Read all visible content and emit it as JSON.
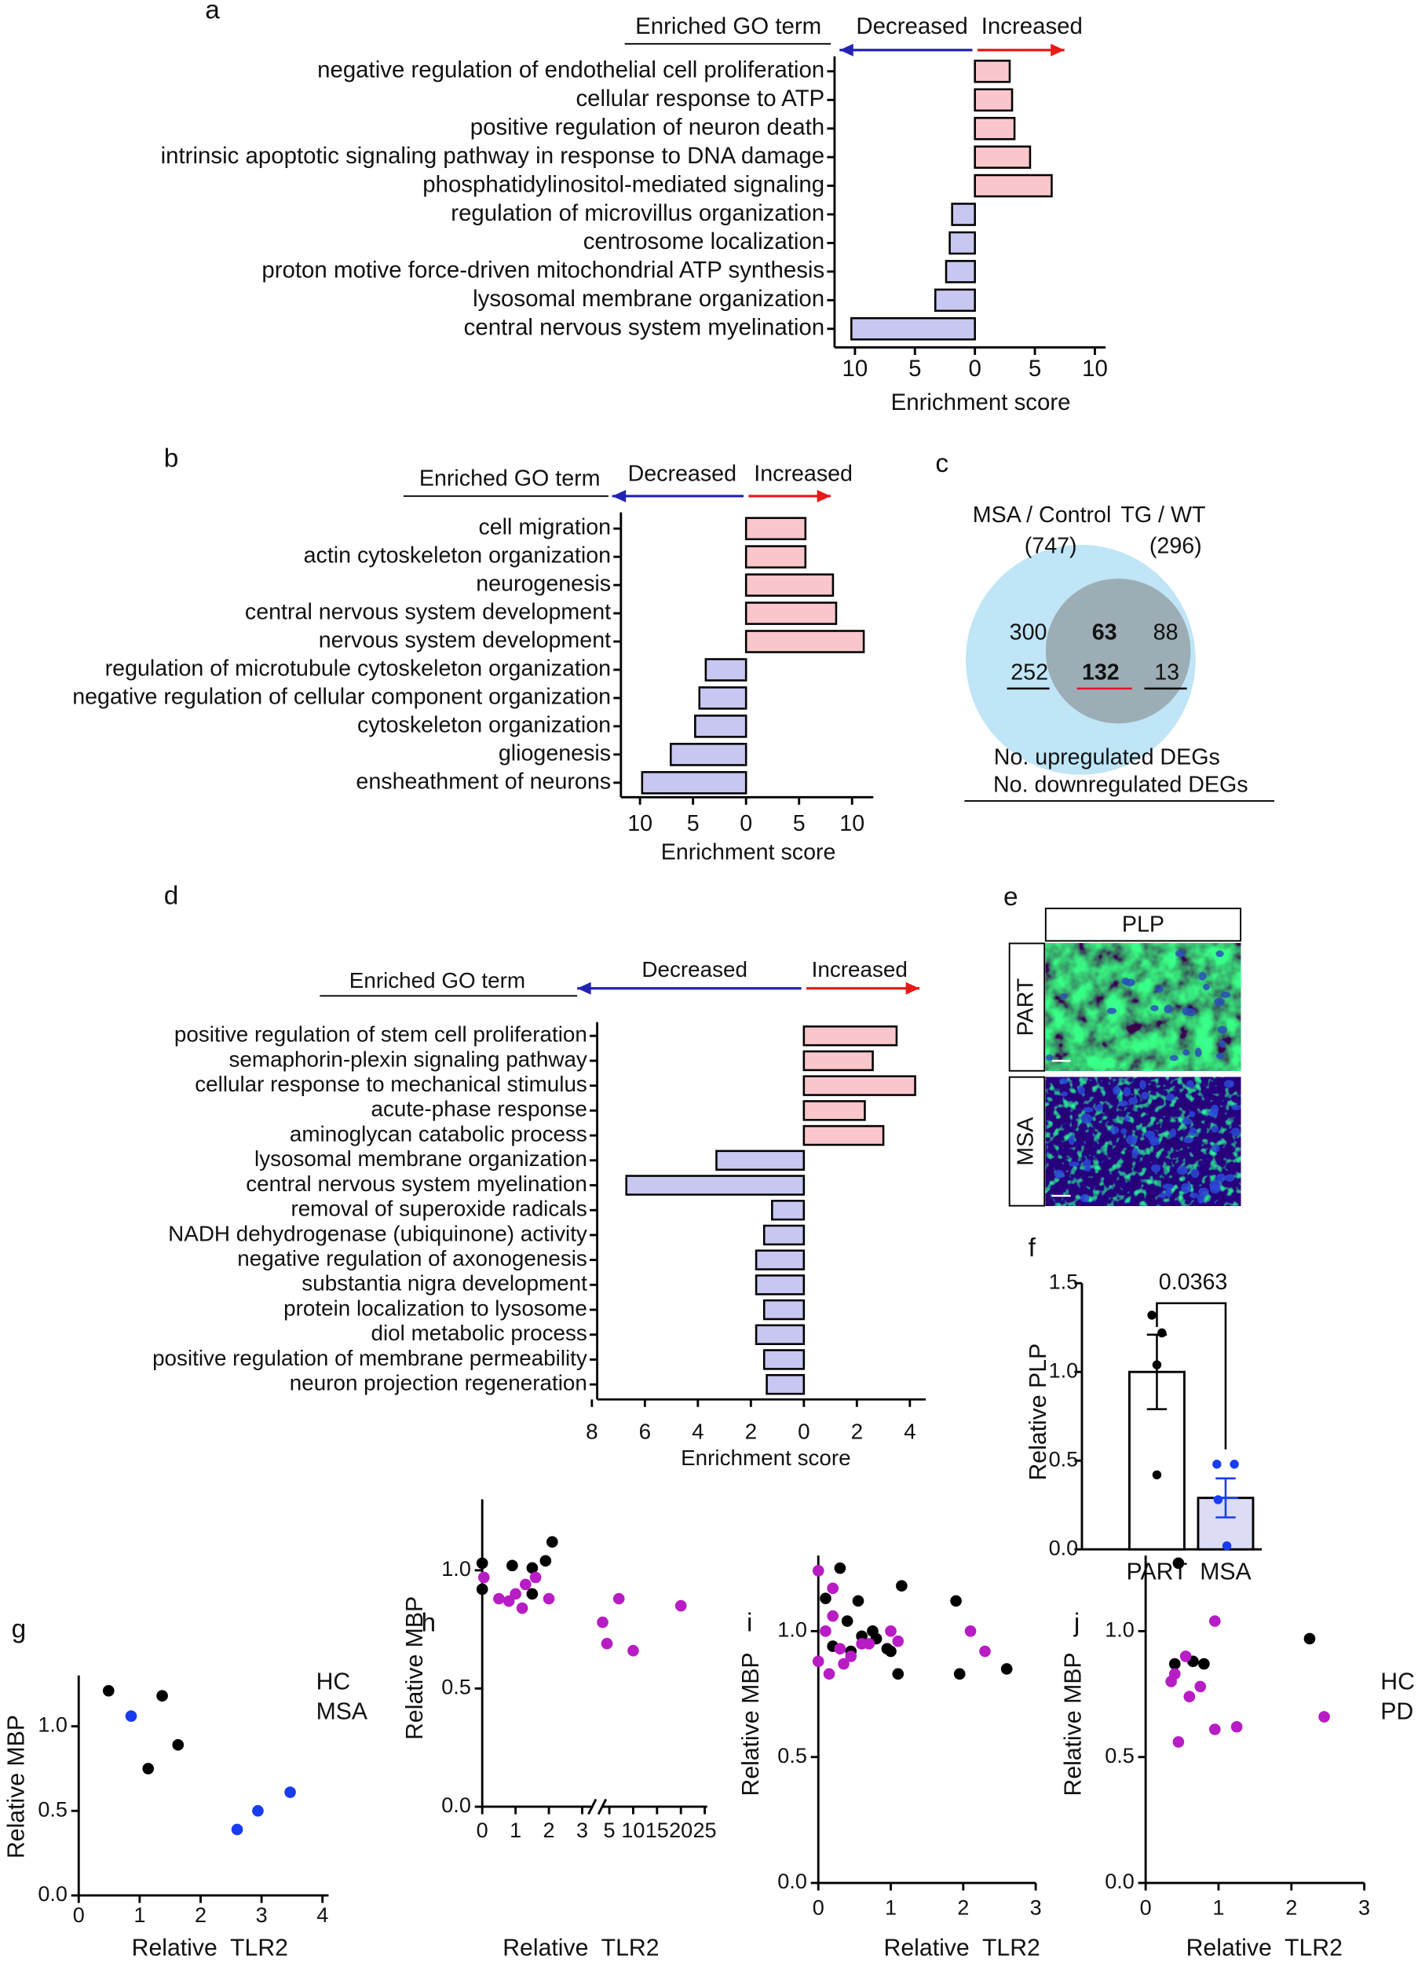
{
  "chart_data": [
    {
      "label": "a",
      "type": "bar",
      "header": "Enriched GO term",
      "left_label": "Decreased",
      "right_label": "Increased",
      "xlabel": "Enrichment score",
      "categories": [
        "negative regulation of endothelial cell proliferation",
        "cellular response to ATP",
        "positive regulation of neuron death",
        "intrinsic apoptotic signaling pathway in response to DNA damage",
        "phosphatidylinositol-mediated signaling",
        "regulation of microvillus organization",
        "centrosome localization",
        "proton motive force-driven mitochondrial ATP synthesis",
        "lysosomal membrane organization",
        "central nervous system myelination"
      ],
      "values": [
        2.9,
        3.1,
        3.3,
        4.6,
        6.4,
        -1.9,
        -2.1,
        -2.4,
        -3.3,
        -10.3
      ],
      "category_colors": [
        "#1a1a1a",
        "#1a1a1a",
        "#1a1a1a",
        "#1a1a1a",
        "#e8112d",
        "#1a1a1a",
        "#1a1a1a",
        "#1a1a1a",
        "#1a1a1a",
        "#1f1fe6"
      ],
      "colors": {
        "increase": "#f9c6cb",
        "decrease": "#c7c7f1",
        "decreased_label": "#2323b4",
        "increased_label": "#e81919"
      },
      "xlim": [
        -11.7,
        10.9
      ],
      "xticks": [
        {
          "value": -10,
          "label": "10"
        },
        {
          "value": -5,
          "label": "5"
        },
        0,
        5,
        10
      ]
    },
    {
      "label": "b",
      "type": "bar",
      "header": "Enriched GO term",
      "left_label": "Decreased",
      "right_label": "Increased",
      "xlabel": "Enrichment score",
      "categories": [
        "cell migration",
        "actin cytoskeleton organization",
        "neurogenesis",
        "central nervous system development",
        "nervous system development",
        "regulation of microtubule cytoskeleton organization",
        "negative regulation of cellular component organization",
        "cytoskeleton organization",
        "gliogenesis",
        "ensheathment of neurons"
      ],
      "values": [
        5.6,
        5.6,
        8.2,
        8.5,
        11.1,
        -3.8,
        -4.4,
        -4.8,
        -7.1,
        -9.8
      ],
      "category_colors": [
        "#1a1a1a",
        "#1a1a1a",
        "#e8112d",
        "#1a1a1a",
        "#1a1a1a",
        "#1a1a1a",
        "#1a1a1a",
        "#1a1a1a",
        "#1f1fe6",
        "#1f1fe6"
      ],
      "colors": {
        "increase": "#f9c6cb",
        "decrease": "#c7c7f1",
        "decreased_label": "#2323b4",
        "increased_label": "#e81919"
      },
      "xlim": [
        -11.8,
        12
      ],
      "xticks": [
        {
          "value": -10,
          "label": "10"
        },
        {
          "value": -5,
          "label": "5"
        },
        0,
        5,
        10
      ]
    },
    {
      "label": "c",
      "type": "venn",
      "sets": [
        {
          "name": "MSA / Control",
          "total": "(747)",
          "color": "#bfe5f6"
        },
        {
          "name": "TG / WT",
          "total": "(296)",
          "color": "#7f7f7f"
        }
      ],
      "up": [
        300,
        63,
        88
      ],
      "down": [
        252,
        132,
        13
      ],
      "overlap_color": "#e8112d",
      "up_label": "No. upregulated DEGs",
      "down_label": "No. downregulated DEGs"
    },
    {
      "label": "d",
      "type": "bar",
      "header": "Enriched GO term",
      "left_label": "Decreased",
      "right_label": "Increased",
      "xlabel": "Enrichment score",
      "categories": [
        "positive regulation of stem cell proliferation",
        "semaphorin-plexin signaling pathway",
        "cellular response to mechanical stimulus",
        "acute-phase response",
        "aminoglycan catabolic process",
        "lysosomal membrane organization",
        "central nervous system myelination",
        "removal of superoxide radicals",
        "NADH dehydrogenase (ubiquinone) activity",
        "negative regulation of axonogenesis",
        "substantia nigra development",
        "protein localization to lysosome",
        "diol metabolic process",
        "positive regulation of membrane permeability",
        "neuron projection regeneration"
      ],
      "values": [
        3.5,
        2.6,
        4.2,
        2.3,
        3.0,
        -3.3,
        -6.7,
        -1.2,
        -1.5,
        -1.8,
        -1.8,
        -1.5,
        -1.8,
        -1.5,
        -1.4
      ],
      "category_colors": [
        "#1a1a1a",
        "#1a1a1a",
        "#1a1a1a",
        "#1a1a1a",
        "#1a1a1a",
        "#1a1a1a",
        "#f03c1e",
        "#1a1a1a",
        "#1a1a1a",
        "#1a1a1a",
        "#1a1a1a",
        "#1a1a1a",
        "#1a1a1a",
        "#1a1a1a",
        "#1a1a1a"
      ],
      "colors": {
        "increase": "#f9c6cb",
        "decrease": "#c7c7f1",
        "decreased_label": "#2323b4",
        "increased_label": "#e81919"
      },
      "xlim": [
        -7.8,
        4.6
      ],
      "xticks": [
        {
          "value": -8,
          "label": "8"
        },
        {
          "value": -6,
          "label": "6"
        },
        {
          "value": -4,
          "label": "4"
        },
        {
          "value": -2,
          "label": "2"
        },
        0,
        2,
        4
      ]
    },
    {
      "label": "e",
      "type": "image",
      "title": "PLP",
      "title_color": "#2ee86a",
      "rows": [
        "PART",
        "MSA"
      ]
    },
    {
      "label": "f",
      "type": "bar_scatter",
      "ylabel": "Relative PLP",
      "annotation": "0.0363",
      "categories": [
        "PART",
        "MSA"
      ],
      "values": [
        1.0,
        0.29
      ],
      "errors": [
        0.21,
        0.11
      ],
      "points": [
        [
          1.32,
          1.22,
          1.04,
          0.42
        ],
        [
          0.48,
          0.48,
          0.28,
          0.02
        ]
      ],
      "bar_colors": [
        "#ffffff",
        "#dcdcf4"
      ],
      "point_colors": [
        "#000000",
        "#1a3cf0"
      ],
      "ylim": [
        0,
        1.5
      ],
      "yticks": [
        {
          "value": 0,
          "label": "0.0"
        },
        0.5,
        {
          "value": 1,
          "label": "1.0"
        },
        1.5
      ]
    },
    {
      "label": "g",
      "type": "scatter",
      "xlabel": "Relative  TLR2",
      "ylabel": "Relative MBP",
      "legend": "right",
      "series": [
        {
          "name": "HC",
          "color": "#000000",
          "x": [
            0.49,
            1.37,
            1.63,
            1.14
          ],
          "y": [
            1.21,
            1.18,
            0.89,
            0.75
          ]
        },
        {
          "name": "MSA",
          "color": "#1a3cf0",
          "x": [
            0.86,
            2.6,
            2.94,
            3.47
          ],
          "y": [
            1.06,
            0.39,
            0.5,
            0.61
          ]
        }
      ],
      "xlim": [
        0,
        4.1
      ],
      "xticks": [
        0,
        1,
        2,
        3,
        4
      ],
      "ylim": [
        0,
        1.3
      ],
      "yticks": [
        {
          "value": 0,
          "label": "0.0"
        },
        0.5,
        {
          "value": 1,
          "label": "1.0"
        }
      ]
    },
    {
      "label": "h",
      "type": "scatter",
      "xlabel": "Relative  TLR2",
      "ylabel": "Relative MBP",
      "x_break": [
        3.3,
        3.5
      ],
      "series": [
        {
          "name": "HC",
          "color": "#000000",
          "x": [
            0,
            0,
            0.9,
            1.5,
            1.5,
            1.9,
            2.1
          ],
          "y": [
            1.03,
            0.92,
            1.02,
            1.01,
            0.9,
            1.04,
            1.12
          ]
        },
        {
          "name": "PD",
          "color": "#b81cc4",
          "x": [
            0.05,
            0.5,
            0.8,
            1.0,
            1.2,
            1.3,
            1.6,
            2.0,
            3.6,
            4.5,
            7,
            10,
            20
          ],
          "y": [
            0.97,
            0.88,
            0.87,
            0.9,
            0.84,
            0.94,
            0.97,
            0.88,
            0.78,
            0.69,
            0.88,
            0.66,
            0.85
          ]
        }
      ],
      "xlim": [
        0,
        25.5
      ],
      "xticks": [
        0,
        1,
        2,
        3,
        5,
        10,
        15,
        20,
        25
      ],
      "ylim": [
        0,
        1.3
      ],
      "yticks": [
        {
          "value": 0,
          "label": "0.0"
        },
        0.5,
        {
          "value": 1,
          "label": "1.0"
        }
      ]
    },
    {
      "label": "i",
      "type": "scatter",
      "xlabel": "Relative  TLR2",
      "ylabel": "Relative MBP",
      "series": [
        {
          "name": "HC",
          "color": "#000000",
          "x": [
            0.1,
            0.2,
            0.3,
            0.4,
            0.45,
            0.55,
            0.6,
            0.75,
            0.8,
            0.95,
            1.0,
            1.1,
            1.15,
            1.9,
            1.95,
            2.6
          ],
          "y": [
            1.13,
            0.94,
            1.25,
            1.04,
            0.92,
            1.12,
            0.98,
            1.0,
            0.97,
            0.93,
            0.92,
            0.83,
            1.18,
            1.12,
            0.83,
            0.85
          ]
        },
        {
          "name": "PD",
          "color": "#b81cc4",
          "x": [
            0,
            0,
            0.1,
            0.15,
            0.2,
            0.2,
            0.3,
            0.35,
            0.45,
            0.6,
            0.7,
            1.0,
            1.1,
            2.1,
            2.3
          ],
          "y": [
            1.24,
            0.88,
            1.0,
            0.83,
            1.17,
            1.06,
            0.93,
            0.87,
            0.9,
            0.95,
            0.95,
            1.0,
            0.96,
            1.0,
            0.92
          ]
        }
      ],
      "xlim": [
        0,
        3
      ],
      "xticks": [
        0,
        1,
        2,
        3
      ],
      "ylim": [
        0,
        1.3
      ],
      "yticks": [
        {
          "value": 0,
          "label": "0.0"
        },
        0.5,
        {
          "value": 1,
          "label": "1.0"
        }
      ]
    },
    {
      "label": "j",
      "type": "scatter",
      "xlabel": "Relative  TLR2",
      "ylabel": "Relative MBP",
      "legend": "right",
      "series": [
        {
          "name": "HC",
          "color": "#000000",
          "x": [
            0.4,
            0.45,
            0.65,
            0.8,
            2.25
          ],
          "y": [
            0.87,
            1.27,
            0.88,
            0.87,
            0.97
          ]
        },
        {
          "name": "PD",
          "color": "#b81cc4",
          "x": [
            0.35,
            0.4,
            0.45,
            0.55,
            0.6,
            0.75,
            0.95,
            0.95,
            1.25,
            2.45
          ],
          "y": [
            0.8,
            0.83,
            0.56,
            0.9,
            0.74,
            0.78,
            1.04,
            0.61,
            0.62,
            0.66
          ]
        }
      ],
      "xlim": [
        0,
        3
      ],
      "xticks": [
        0,
        1,
        2,
        3
      ],
      "ylim": [
        0,
        1.3
      ],
      "yticks": [
        {
          "value": 0,
          "label": "0.0"
        },
        0.5,
        {
          "value": 1,
          "label": "1.0"
        }
      ]
    }
  ]
}
